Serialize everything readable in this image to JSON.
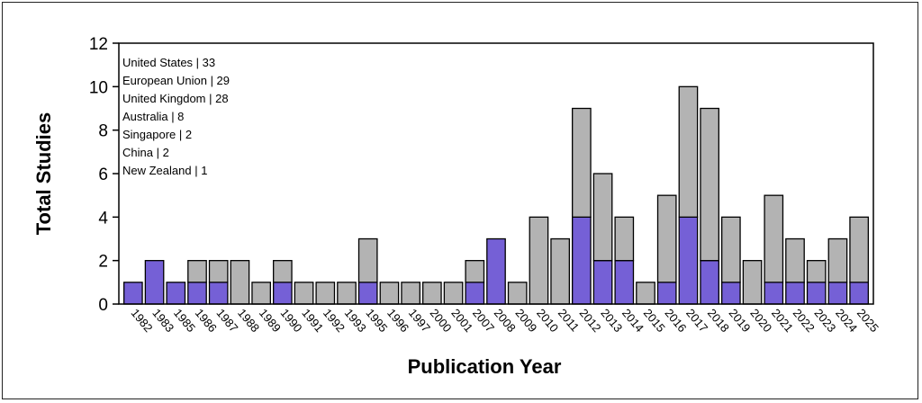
{
  "chart_data": {
    "type": "bar",
    "stacked": true,
    "title": "",
    "xlabel": "Publication Year",
    "ylabel": "Total Studies",
    "ylim": [
      0,
      12
    ],
    "yticks": [
      0,
      2,
      4,
      6,
      8,
      10,
      12
    ],
    "grid": false,
    "legend": "none",
    "categories": [
      "1982",
      "1983",
      "1985",
      "1986",
      "1987",
      "1988",
      "1989",
      "1990",
      "1991",
      "1992",
      "1993",
      "1995",
      "1996",
      "1997",
      "2000",
      "2001",
      "2007",
      "2008",
      "2009",
      "2010",
      "2011",
      "2012",
      "2013",
      "2014",
      "2015",
      "2016",
      "2017",
      "2018",
      "2019",
      "2020",
      "2021",
      "2022",
      "2023",
      "2024",
      "2025"
    ],
    "series": [
      {
        "color": "#7560d6",
        "values": [
          1,
          2,
          1,
          1,
          1,
          0,
          0,
          1,
          0,
          0,
          0,
          1,
          0,
          0,
          0,
          0,
          1,
          3,
          0,
          0,
          0,
          4,
          2,
          2,
          0,
          1,
          4,
          2,
          1,
          0,
          1,
          1,
          1,
          1,
          1
        ]
      },
      {
        "color": "#b3b3b3",
        "values": [
          0,
          0,
          0,
          1,
          1,
          2,
          1,
          1,
          1,
          1,
          1,
          2,
          1,
          1,
          1,
          1,
          1,
          0,
          1,
          4,
          3,
          5,
          4,
          2,
          1,
          4,
          6,
          7,
          3,
          2,
          4,
          2,
          1,
          2,
          3
        ]
      }
    ],
    "annotations": [
      "United States | 33",
      "European Union | 29",
      "United Kingdom | 28",
      "Australia | 8",
      "Singapore | 2",
      "China | 2",
      "New Zealand | 1"
    ]
  }
}
